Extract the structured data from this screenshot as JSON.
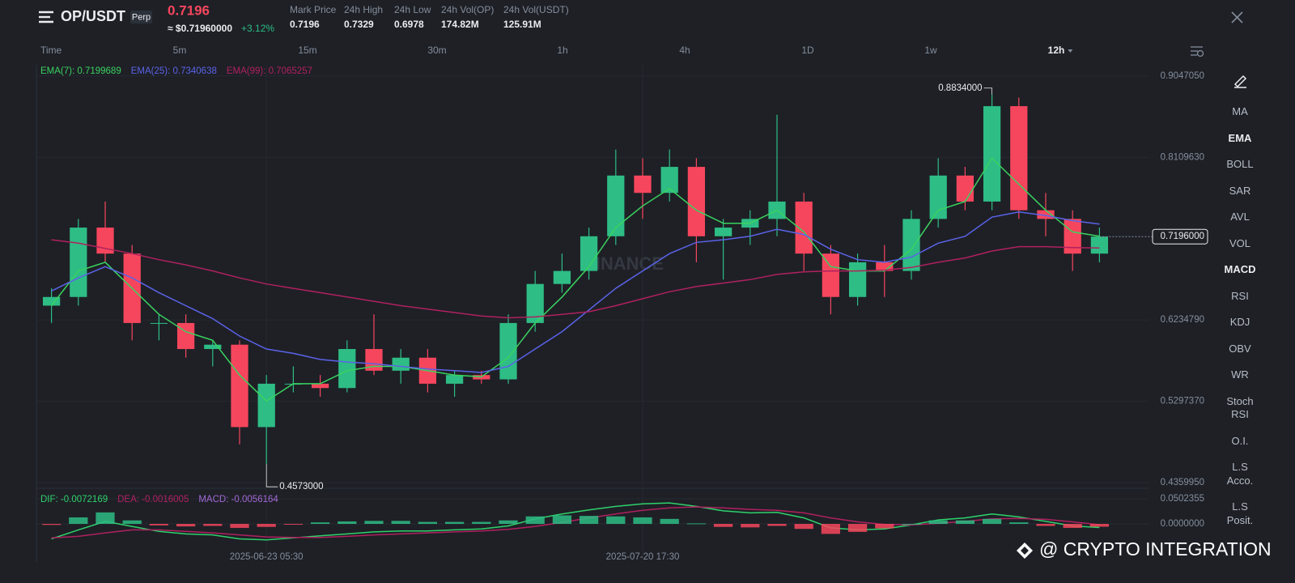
{
  "header": {
    "symbol": "OP/USDT",
    "contract": "Perp",
    "price": "0.7196",
    "price_usd": "≈ $0.71960000",
    "change": "+3.12%",
    "stats": [
      {
        "label": "Mark Price",
        "value": "0.7196"
      },
      {
        "label": "24h High",
        "value": "0.7329"
      },
      {
        "label": "24h Low",
        "value": "0.6978"
      },
      {
        "label": "24h Vol(OP)",
        "value": "174.82M"
      },
      {
        "label": "24h Vol(USDT)",
        "value": "125.91M"
      }
    ]
  },
  "timeframes": [
    {
      "label": "Time",
      "active": false
    },
    {
      "label": "5m",
      "active": false
    },
    {
      "label": "15m",
      "active": false
    },
    {
      "label": "30m",
      "active": false
    },
    {
      "label": "1h",
      "active": false
    },
    {
      "label": "4h",
      "active": false
    },
    {
      "label": "1D",
      "active": false
    },
    {
      "label": "1w",
      "active": false
    },
    {
      "label": "12h",
      "active": true
    }
  ],
  "indicators": [
    {
      "label": "MA",
      "active": false
    },
    {
      "label": "EMA",
      "active": true
    },
    {
      "label": "BOLL",
      "active": false
    },
    {
      "label": "SAR",
      "active": false
    },
    {
      "label": "AVL",
      "active": false
    },
    {
      "label": "VOL",
      "active": false
    },
    {
      "label": "MACD",
      "active": true
    },
    {
      "label": "RSI",
      "active": false
    },
    {
      "label": "KDJ",
      "active": false
    },
    {
      "label": "OBV",
      "active": false
    },
    {
      "label": "WR",
      "active": false
    },
    {
      "label": "Stoch RSI",
      "active": false
    },
    {
      "label": "O.I.",
      "active": false
    },
    {
      "label": "L.S Acco.",
      "active": false
    },
    {
      "label": "L.S Posit.",
      "active": false
    }
  ],
  "logo_watermark": "BINANCE",
  "watermark": "@ CRYPTO INTEGRATION",
  "chart_data": [
    {
      "type": "candlestick",
      "up_color": "#2ebd85",
      "down_color": "#f6465d",
      "ohlc": [
        [
          0.64,
          0.66,
          0.62,
          0.65
        ],
        [
          0.65,
          0.74,
          0.64,
          0.73
        ],
        [
          0.73,
          0.76,
          0.69,
          0.7
        ],
        [
          0.7,
          0.71,
          0.6,
          0.62
        ],
        [
          0.62,
          0.63,
          0.6,
          0.62
        ],
        [
          0.62,
          0.63,
          0.58,
          0.59
        ],
        [
          0.59,
          0.6,
          0.57,
          0.595
        ],
        [
          0.595,
          0.6,
          0.48,
          0.5
        ],
        [
          0.5,
          0.56,
          0.4573,
          0.55
        ],
        [
          0.55,
          0.57,
          0.54,
          0.55
        ],
        [
          0.55,
          0.56,
          0.535,
          0.545
        ],
        [
          0.545,
          0.6,
          0.54,
          0.59
        ],
        [
          0.59,
          0.63,
          0.56,
          0.565
        ],
        [
          0.565,
          0.59,
          0.55,
          0.58
        ],
        [
          0.58,
          0.59,
          0.54,
          0.55
        ],
        [
          0.55,
          0.565,
          0.535,
          0.56
        ],
        [
          0.56,
          0.565,
          0.55,
          0.555
        ],
        [
          0.555,
          0.63,
          0.55,
          0.62
        ],
        [
          0.62,
          0.68,
          0.61,
          0.665
        ],
        [
          0.665,
          0.7,
          0.655,
          0.68
        ],
        [
          0.68,
          0.73,
          0.67,
          0.72
        ],
        [
          0.72,
          0.82,
          0.71,
          0.79
        ],
        [
          0.79,
          0.81,
          0.74,
          0.77
        ],
        [
          0.77,
          0.82,
          0.76,
          0.8
        ],
        [
          0.8,
          0.81,
          0.69,
          0.72
        ],
        [
          0.72,
          0.74,
          0.67,
          0.73
        ],
        [
          0.73,
          0.75,
          0.71,
          0.74
        ],
        [
          0.74,
          0.86,
          0.72,
          0.76
        ],
        [
          0.76,
          0.77,
          0.68,
          0.7
        ],
        [
          0.7,
          0.71,
          0.63,
          0.65
        ],
        [
          0.65,
          0.7,
          0.64,
          0.69
        ],
        [
          0.69,
          0.71,
          0.65,
          0.68
        ],
        [
          0.68,
          0.75,
          0.67,
          0.74
        ],
        [
          0.74,
          0.81,
          0.73,
          0.79
        ],
        [
          0.79,
          0.8,
          0.75,
          0.76
        ],
        [
          0.76,
          0.8834,
          0.75,
          0.87
        ],
        [
          0.87,
          0.88,
          0.74,
          0.75
        ],
        [
          0.75,
          0.77,
          0.72,
          0.74
        ],
        [
          0.74,
          0.75,
          0.68,
          0.7
        ],
        [
          0.7,
          0.73,
          0.69,
          0.7196
        ]
      ],
      "lines": [
        {
          "name": "EMA(7): 0.7199689",
          "color": "#3ad25f",
          "values": [
            0.64,
            0.68,
            0.69,
            0.66,
            0.63,
            0.61,
            0.6,
            0.56,
            0.53,
            0.55,
            0.55,
            0.565,
            0.57,
            0.57,
            0.565,
            0.56,
            0.558,
            0.58,
            0.62,
            0.65,
            0.685,
            0.73,
            0.755,
            0.775,
            0.75,
            0.735,
            0.735,
            0.75,
            0.725,
            0.685,
            0.68,
            0.68,
            0.705,
            0.75,
            0.76,
            0.81,
            0.78,
            0.75,
            0.725,
            0.7199689
          ]
        },
        {
          "name": "EMA(25): 0.7340638",
          "color": "#5b63e8",
          "values": [
            0.657,
            0.672,
            0.685,
            0.672,
            0.655,
            0.64,
            0.625,
            0.605,
            0.59,
            0.585,
            0.578,
            0.575,
            0.573,
            0.57,
            0.567,
            0.565,
            0.563,
            0.57,
            0.59,
            0.61,
            0.635,
            0.66,
            0.68,
            0.7,
            0.713,
            0.716,
            0.72,
            0.728,
            0.722,
            0.705,
            0.693,
            0.69,
            0.696,
            0.712,
            0.72,
            0.742,
            0.748,
            0.744,
            0.738,
            0.7340638
          ]
        },
        {
          "name": "EMA(99): 0.7065257",
          "color": "#b0205f",
          "values": [
            0.716,
            0.712,
            0.706,
            0.7,
            0.693,
            0.687,
            0.68,
            0.672,
            0.665,
            0.66,
            0.655,
            0.65,
            0.645,
            0.64,
            0.636,
            0.632,
            0.628,
            0.626,
            0.627,
            0.63,
            0.633,
            0.64,
            0.648,
            0.656,
            0.662,
            0.666,
            0.67,
            0.676,
            0.679,
            0.68,
            0.68,
            0.681,
            0.684,
            0.69,
            0.695,
            0.703,
            0.708,
            0.708,
            0.707,
            0.7065257
          ]
        }
      ],
      "max_label": "0.8834000",
      "min_label": "0.4573000",
      "last_price": {
        "value": 0.7196,
        "label": "0.7196000"
      },
      "ylim": [
        0.4304,
        0.9177
      ],
      "yticks": [
        {
          "value": 0.904705,
          "label": "0.9047050"
        },
        {
          "value": 0.810963,
          "label": "0.8109630"
        },
        {
          "value": 0.623479,
          "label": "0.6234790"
        },
        {
          "value": 0.529737,
          "label": "0.5297370"
        },
        {
          "value": 0.435995,
          "label": "0.4359950"
        }
      ],
      "grid": true
    },
    {
      "type": "macd",
      "categories": [
        null,
        null,
        null,
        null,
        null,
        null,
        null,
        null,
        "2025-06-23 05:30",
        null,
        null,
        null,
        null,
        null,
        null,
        null,
        null,
        null,
        null,
        null,
        null,
        null,
        "2025-07-20 17:30",
        null,
        null,
        null,
        null,
        null,
        null,
        null,
        null,
        null,
        null,
        null,
        null,
        null,
        null,
        null,
        null,
        null
      ],
      "series": [
        {
          "name": "DIF: -0.0072169",
          "color": "#2fd16b",
          "values": [
            -0.03,
            -0.012,
            0.005,
            -0.005,
            -0.015,
            -0.02,
            -0.022,
            -0.03,
            -0.032,
            -0.028,
            -0.024,
            -0.02,
            -0.016,
            -0.014,
            -0.014,
            -0.012,
            -0.01,
            -0.004,
            0.01,
            0.02,
            0.028,
            0.035,
            0.04,
            0.042,
            0.035,
            0.026,
            0.022,
            0.023,
            0.012,
            -0.008,
            -0.012,
            -0.01,
            -0.002,
            0.008,
            0.012,
            0.02,
            0.014,
            0.005,
            -0.004,
            -0.0072169
          ]
        },
        {
          "name": "DEA: -0.0016005",
          "color": "#b0205f",
          "values": [
            -0.028,
            -0.025,
            -0.018,
            -0.012,
            -0.012,
            -0.015,
            -0.018,
            -0.022,
            -0.026,
            -0.027,
            -0.027,
            -0.025,
            -0.022,
            -0.02,
            -0.018,
            -0.016,
            -0.014,
            -0.011,
            -0.005,
            0.003,
            0.012,
            0.02,
            0.027,
            0.032,
            0.034,
            0.032,
            0.029,
            0.027,
            0.022,
            0.012,
            0.004,
            -0.001,
            -0.002,
            0.001,
            0.005,
            0.01,
            0.011,
            0.009,
            0.004,
            -0.0016005
          ]
        },
        {
          "name": "MACD: -0.0056164",
          "type": "bar",
          "color": "#a368d6",
          "up_color": "#2ebd85",
          "down_color": "#f6465d",
          "values": [
            -0.002,
            0.013,
            0.023,
            0.007,
            -0.003,
            -0.005,
            -0.004,
            -0.008,
            -0.006,
            -0.001,
            0.003,
            0.005,
            0.006,
            0.006,
            0.004,
            0.004,
            0.004,
            0.007,
            0.015,
            0.017,
            0.016,
            0.015,
            0.013,
            0.01,
            0.001,
            -0.006,
            -0.007,
            -0.004,
            -0.01,
            -0.02,
            -0.016,
            -0.009,
            0,
            0.007,
            0.007,
            0.01,
            0.003,
            -0.004,
            -0.008,
            -0.0056164
          ]
        }
      ],
      "ylim": [
        -0.0696,
        0.068
      ],
      "yticks": [
        0.0502355,
        {
          "value": 0,
          "label": "0.0000000"
        }
      ],
      "grid": true
    }
  ]
}
